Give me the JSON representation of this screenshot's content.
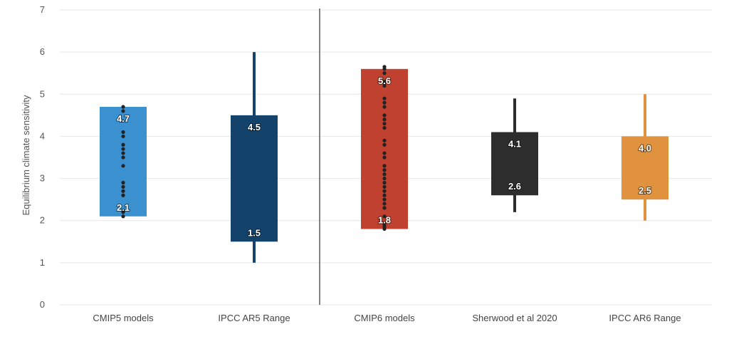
{
  "chart_data": {
    "type": "bar",
    "ylabel": "Equilibrium climate sensitivity",
    "ylim": [
      0,
      7
    ],
    "yticks": [
      "0",
      "1",
      "2",
      "3",
      "4",
      "5",
      "6",
      "7"
    ],
    "grid": true,
    "categories": [
      "CMIP5 models",
      "IPCC AR5 Range",
      "CMIP6 models",
      "Sherwood et al 2020",
      "IPCC AR6 Range"
    ],
    "series": [
      {
        "category": "CMIP5 models",
        "box_low": 2.1,
        "box_high": 4.7,
        "whisker_low": null,
        "whisker_high": null,
        "low_label": "2.1",
        "high_label": "4.7",
        "color": "#3b90d0",
        "points": [
          2.1,
          2.2,
          2.6,
          2.7,
          2.8,
          2.9,
          3.3,
          3.5,
          3.6,
          3.7,
          3.8,
          4.0,
          4.1,
          4.6,
          4.7
        ]
      },
      {
        "category": "IPCC AR5 Range",
        "box_low": 1.5,
        "box_high": 4.5,
        "whisker_low": 1.0,
        "whisker_high": 6.0,
        "low_label": "1.5",
        "high_label": "4.5",
        "color": "#13426a",
        "points": []
      },
      {
        "category": "CMIP6 models",
        "box_low": 1.8,
        "box_high": 5.6,
        "whisker_low": null,
        "whisker_high": null,
        "low_label": "1.8",
        "high_label": "5.6",
        "color": "#c0412f",
        "points": [
          1.8,
          1.85,
          1.9,
          2.1,
          2.3,
          2.4,
          2.5,
          2.6,
          2.7,
          2.8,
          2.9,
          3.0,
          3.1,
          3.2,
          3.3,
          3.5,
          3.6,
          3.8,
          3.9,
          4.2,
          4.3,
          4.4,
          4.5,
          4.7,
          4.8,
          4.9,
          5.2,
          5.3,
          5.5,
          5.6,
          5.65
        ]
      },
      {
        "category": "Sherwood et al 2020",
        "box_low": 2.6,
        "box_high": 4.1,
        "whisker_low": 2.2,
        "whisker_high": 4.9,
        "low_label": "2.6",
        "high_label": "4.1",
        "color": "#2d2d2d",
        "points": []
      },
      {
        "category": "IPCC AR6 Range",
        "box_low": 2.5,
        "box_high": 4.0,
        "whisker_low": 2.0,
        "whisker_high": 5.0,
        "low_label": "2.5",
        "high_label": "4.0",
        "color": "#e0923f",
        "points": []
      }
    ],
    "grid_color": "#e6e6e6",
    "separator_color": "#333333",
    "point_color": "#222222"
  }
}
